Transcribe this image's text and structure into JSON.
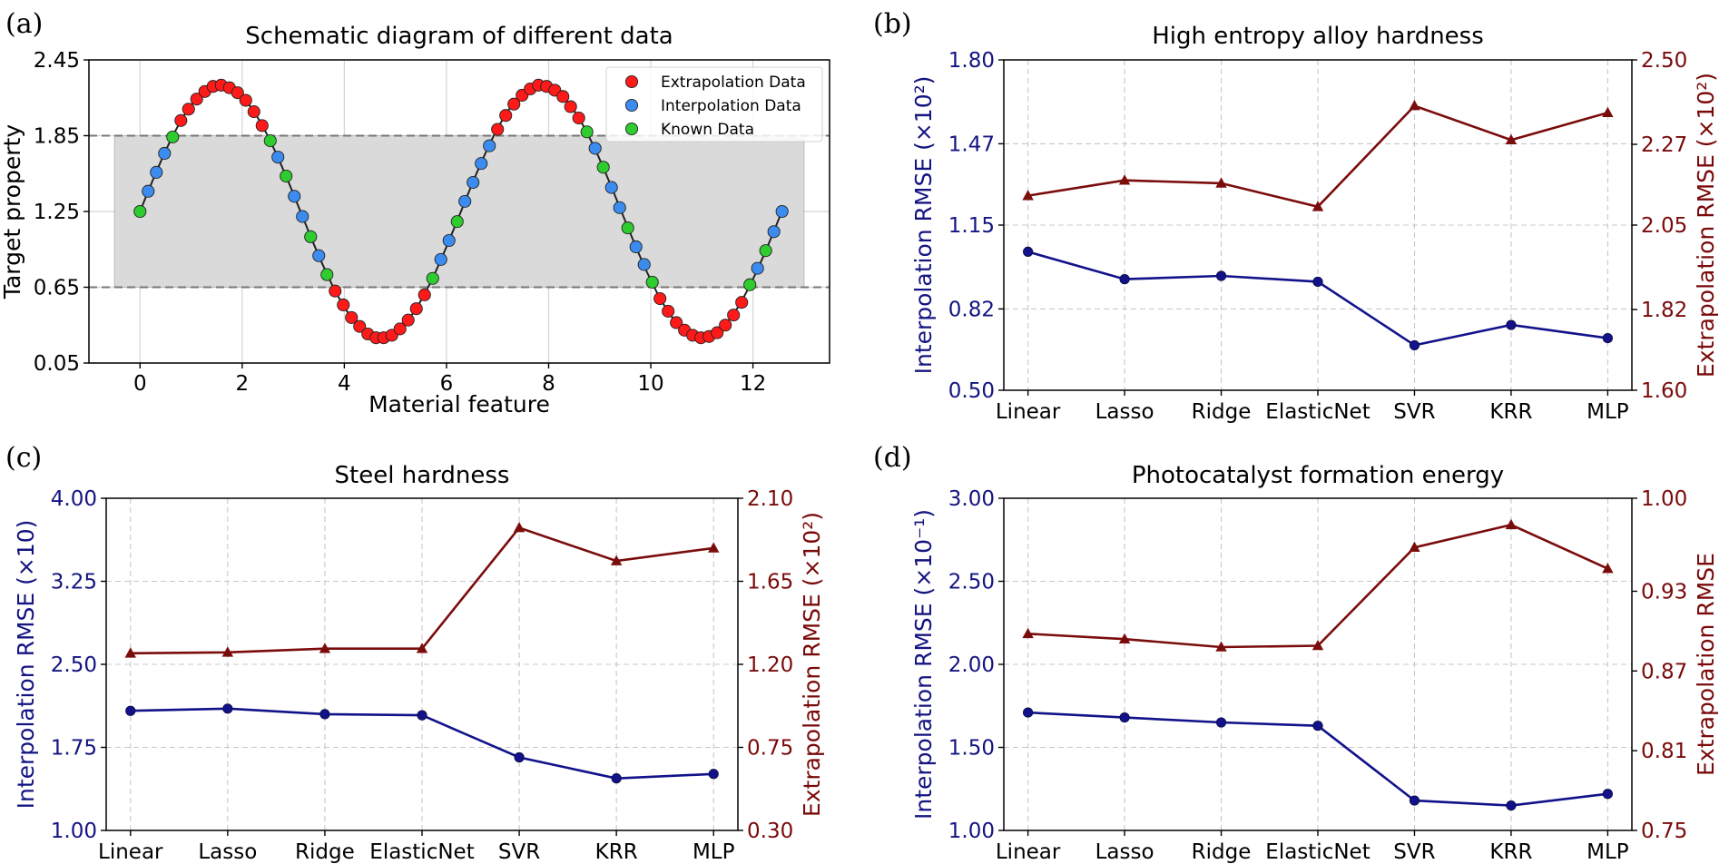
{
  "panels": {
    "a": {
      "label": "(a)"
    },
    "b": {
      "label": "(b)"
    },
    "c": {
      "label": "(c)"
    },
    "d": {
      "label": "(d)"
    }
  },
  "colors": {
    "interp_axis": "#141482",
    "extrap_axis": "#7a0a0a",
    "interp_line": "#12128a",
    "extrap_line": "#7b0c0c",
    "extrap_point": "#ff1a1a",
    "interp_point": "#3c8cf0",
    "known_point": "#2ecc2e",
    "band": "#d9d9d9"
  },
  "chart_data": [
    {
      "id": "a",
      "type": "scatter",
      "title": "Schematic diagram of different data",
      "xlabel": "Material feature",
      "ylabel": "Target property",
      "xlim": [
        -1,
        13.5
      ],
      "ylim": [
        0.05,
        2.45
      ],
      "xticks": [
        0,
        2,
        4,
        6,
        8,
        10,
        12
      ],
      "yticks": [
        "0.05",
        "0.65",
        "1.25",
        "1.85",
        "2.45"
      ],
      "known_range": [
        0.65,
        1.85
      ],
      "band_x": [
        -0.5,
        13
      ],
      "curve": {
        "function": "1.25 + sin(x)",
        "x_start": 0,
        "x_end": 12.566,
        "n_points": 80
      },
      "legend": [
        "Extrapolation Data",
        "Interpolation Data",
        "Known Data"
      ],
      "known_points": [
        {
          "x": 0.0,
          "y": 1.25
        },
        {
          "x": 0.64,
          "y": 1.84
        },
        {
          "x": 2.55,
          "y": 1.81
        },
        {
          "x": 2.86,
          "y": 1.53
        },
        {
          "x": 3.34,
          "y": 1.05
        },
        {
          "x": 3.66,
          "y": 0.75
        },
        {
          "x": 5.73,
          "y": 0.72
        },
        {
          "x": 6.21,
          "y": 1.17
        },
        {
          "x": 8.75,
          "y": 1.88
        },
        {
          "x": 9.07,
          "y": 1.6
        },
        {
          "x": 9.55,
          "y": 1.12
        },
        {
          "x": 10.03,
          "y": 0.69
        },
        {
          "x": 11.94,
          "y": 0.67
        },
        {
          "x": 12.25,
          "y": 0.94
        }
      ],
      "interpolation_points": [
        {
          "x": 0.16,
          "y": 1.41
        },
        {
          "x": 0.32,
          "y": 1.56
        },
        {
          "x": 0.48,
          "y": 1.71
        },
        {
          "x": 2.7,
          "y": 1.68
        },
        {
          "x": 3.02,
          "y": 1.37
        },
        {
          "x": 3.18,
          "y": 1.21
        },
        {
          "x": 3.5,
          "y": 0.9
        },
        {
          "x": 5.89,
          "y": 0.87
        },
        {
          "x": 6.05,
          "y": 1.02
        },
        {
          "x": 6.36,
          "y": 1.33
        },
        {
          "x": 6.52,
          "y": 1.48
        },
        {
          "x": 6.68,
          "y": 1.63
        },
        {
          "x": 6.84,
          "y": 1.77
        },
        {
          "x": 8.91,
          "y": 1.75
        },
        {
          "x": 9.23,
          "y": 1.44
        },
        {
          "x": 9.39,
          "y": 1.28
        },
        {
          "x": 9.71,
          "y": 0.97
        },
        {
          "x": 9.87,
          "y": 0.83
        },
        {
          "x": 12.09,
          "y": 0.8
        },
        {
          "x": 12.41,
          "y": 1.09
        },
        {
          "x": 12.57,
          "y": 1.25
        }
      ],
      "extrapolation_points": [
        {
          "x": 0.8,
          "y": 1.97
        },
        {
          "x": 0.95,
          "y": 2.06
        },
        {
          "x": 1.11,
          "y": 2.14
        },
        {
          "x": 1.27,
          "y": 2.2
        },
        {
          "x": 1.43,
          "y": 2.24
        },
        {
          "x": 1.59,
          "y": 2.25
        },
        {
          "x": 1.75,
          "y": 2.23
        },
        {
          "x": 1.91,
          "y": 2.19
        },
        {
          "x": 2.07,
          "y": 2.13
        },
        {
          "x": 2.23,
          "y": 2.04
        },
        {
          "x": 2.39,
          "y": 1.93
        },
        {
          "x": 3.82,
          "y": 0.62
        },
        {
          "x": 3.98,
          "y": 0.51
        },
        {
          "x": 4.14,
          "y": 0.41
        },
        {
          "x": 4.3,
          "y": 0.34
        },
        {
          "x": 4.46,
          "y": 0.28
        },
        {
          "x": 4.62,
          "y": 0.25
        },
        {
          "x": 4.77,
          "y": 0.25
        },
        {
          "x": 4.93,
          "y": 0.27
        },
        {
          "x": 5.09,
          "y": 0.32
        },
        {
          "x": 5.25,
          "y": 0.39
        },
        {
          "x": 5.41,
          "y": 0.48
        },
        {
          "x": 5.57,
          "y": 0.59
        },
        {
          "x": 7.0,
          "y": 1.9
        },
        {
          "x": 7.16,
          "y": 2.01
        },
        {
          "x": 7.32,
          "y": 2.1
        },
        {
          "x": 7.48,
          "y": 2.17
        },
        {
          "x": 7.64,
          "y": 2.22
        },
        {
          "x": 7.8,
          "y": 2.25
        },
        {
          "x": 7.96,
          "y": 2.24
        },
        {
          "x": 8.12,
          "y": 2.21
        },
        {
          "x": 8.28,
          "y": 2.16
        },
        {
          "x": 8.43,
          "y": 2.08
        },
        {
          "x": 8.59,
          "y": 1.99
        },
        {
          "x": 10.18,
          "y": 0.56
        },
        {
          "x": 10.34,
          "y": 0.46
        },
        {
          "x": 10.5,
          "y": 0.37
        },
        {
          "x": 10.66,
          "y": 0.31
        },
        {
          "x": 10.82,
          "y": 0.27
        },
        {
          "x": 10.98,
          "y": 0.25
        },
        {
          "x": 11.14,
          "y": 0.26
        },
        {
          "x": 11.3,
          "y": 0.29
        },
        {
          "x": 11.46,
          "y": 0.35
        },
        {
          "x": 11.62,
          "y": 0.43
        },
        {
          "x": 11.78,
          "y": 0.53
        }
      ]
    },
    {
      "id": "b",
      "type": "line",
      "title": "High entropy alloy hardness",
      "categories": [
        "Linear",
        "Lasso",
        "Ridge",
        "ElasticNet",
        "SVR",
        "KRR",
        "MLP"
      ],
      "ylabel_left": "Interpolation RMSE (×10²)",
      "ylabel_right": "Extrapolation RMSE (×10²)",
      "ylim_left": [
        0.5,
        1.8
      ],
      "ylim_right": [
        1.6,
        2.5
      ],
      "yticks_left": [
        "0.50",
        "0.82",
        "1.15",
        "1.47",
        "1.80"
      ],
      "yticks_right": [
        "1.60",
        "1.82",
        "2.05",
        "2.27",
        "2.50"
      ],
      "series": [
        {
          "name": "Interpolation",
          "axis": "left",
          "marker": "circle",
          "values": [
            1.045,
            0.937,
            0.95,
            0.927,
            0.677,
            0.757,
            0.705
          ]
        },
        {
          "name": "Extrapolation",
          "axis": "right",
          "marker": "triangle",
          "values": [
            2.13,
            2.172,
            2.164,
            2.1,
            2.375,
            2.282,
            2.356
          ]
        }
      ]
    },
    {
      "id": "c",
      "type": "line",
      "title": "Steel hardness",
      "categories": [
        "Linear",
        "Lasso",
        "Ridge",
        "ElasticNet",
        "SVR",
        "KRR",
        "MLP"
      ],
      "ylabel_left": "Interpolation RMSE (×10)",
      "ylabel_right": "Extrapolation RMSE (×10²)",
      "ylim_left": [
        1.0,
        4.0
      ],
      "ylim_right": [
        0.3,
        2.1
      ],
      "yticks_left": [
        "1.00",
        "1.75",
        "2.50",
        "3.25",
        "4.00"
      ],
      "yticks_right": [
        "0.30",
        "0.75",
        "1.20",
        "1.65",
        "2.10"
      ],
      "series": [
        {
          "name": "Interpolation",
          "axis": "left",
          "marker": "circle",
          "values": [
            2.08,
            2.1,
            2.05,
            2.04,
            1.66,
            1.47,
            1.51
          ]
        },
        {
          "name": "Extrapolation",
          "axis": "right",
          "marker": "triangle",
          "values": [
            1.26,
            1.265,
            1.285,
            1.285,
            1.94,
            1.76,
            1.83
          ]
        }
      ]
    },
    {
      "id": "d",
      "type": "line",
      "title": "Photocatalyst formation energy",
      "categories": [
        "Linear",
        "Lasso",
        "Ridge",
        "ElasticNet",
        "SVR",
        "KRR",
        "MLP"
      ],
      "ylabel_left": "Interpolation RMSE (×10⁻¹)",
      "ylabel_right": "Extrapolation RMSE",
      "ylim_left": [
        1.0,
        3.0
      ],
      "ylim_right": [
        0.75,
        1.0
      ],
      "yticks_left": [
        "1.00",
        "1.50",
        "2.00",
        "2.50",
        "3.00"
      ],
      "yticks_right": [
        "0.75",
        "0.81",
        "0.87",
        "0.93",
        "1.00"
      ],
      "series": [
        {
          "name": "Interpolation",
          "axis": "left",
          "marker": "circle",
          "values": [
            1.71,
            1.68,
            1.65,
            1.63,
            1.18,
            1.15,
            1.22
          ]
        },
        {
          "name": "Extrapolation",
          "axis": "right",
          "marker": "triangle",
          "values": [
            0.898,
            0.894,
            0.888,
            0.889,
            0.963,
            0.98,
            0.947
          ]
        }
      ]
    }
  ]
}
